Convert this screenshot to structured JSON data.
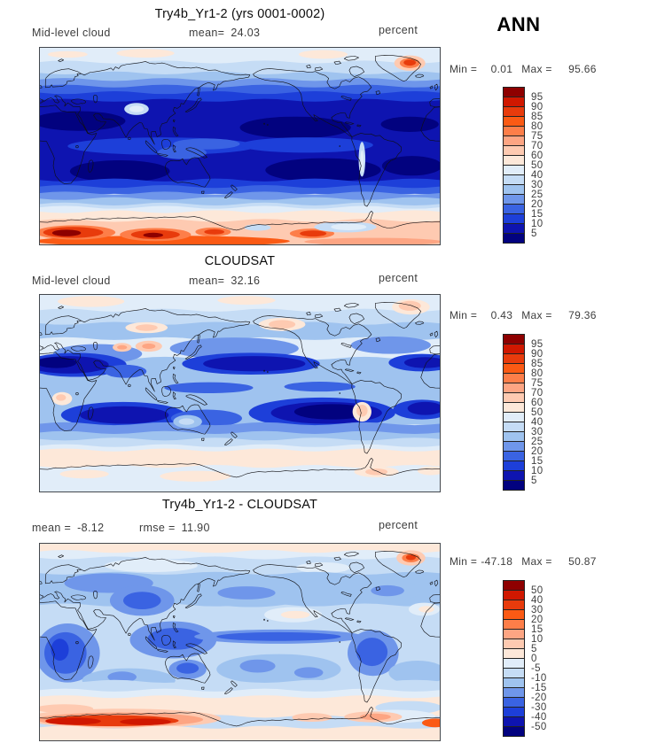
{
  "header": {
    "season": "ANN"
  },
  "palette": [
    "#8e0000",
    "#d01800",
    "#e83b0c",
    "#fb5a14",
    "#fd7e49",
    "#fda583",
    "#fecab1",
    "#fde8d9",
    "#e1edf9",
    "#c5dcf5",
    "#9fc3ef",
    "#6f96ea",
    "#3a63e2",
    "#1d3fd9",
    "#0e14b0",
    "#02027f"
  ],
  "panels": [
    {
      "id": "model",
      "title": "Try4b_Yr1-2 (yrs 0001-0002)",
      "left_label": "Mid-level cloud",
      "left_value": "",
      "mid_label": "mean=",
      "mid_value": "24.03",
      "units": "percent",
      "min_label": "Min =",
      "min_value": "0.01",
      "max_label": "Max =",
      "max_value": "95.66",
      "levels": [
        "95",
        "90",
        "85",
        "80",
        "75",
        "70",
        "60",
        "50",
        "40",
        "30",
        "25",
        "20",
        "15",
        "10",
        "5"
      ]
    },
    {
      "id": "obs",
      "title": "CLOUDSAT",
      "left_label": "Mid-level cloud",
      "left_value": "",
      "mid_label": "mean=",
      "mid_value": "32.16",
      "units": "percent",
      "min_label": "Min =",
      "min_value": "0.43",
      "max_label": "Max =",
      "max_value": "79.36",
      "levels": [
        "95",
        "90",
        "85",
        "80",
        "75",
        "70",
        "60",
        "50",
        "40",
        "30",
        "25",
        "20",
        "15",
        "10",
        "5"
      ]
    },
    {
      "id": "diff",
      "title": "Try4b_Yr1-2 - CLOUDSAT",
      "left_label": "mean =",
      "left_value": "-8.12",
      "mid_label": "rmse =",
      "mid_value": "11.90",
      "units": "percent",
      "min_label": "Min =",
      "min_value": "-47.18",
      "max_label": "Max =",
      "max_value": "50.87",
      "levels": [
        "50",
        "40",
        "30",
        "20",
        "15",
        "10",
        "5",
        "0",
        "-5",
        "-10",
        "-15",
        "-20",
        "-30",
        "-40",
        "-50"
      ]
    }
  ],
  "chart_data": {
    "type": "contour-map",
    "season": "ANN",
    "variable": "Mid-level cloud",
    "units": "percent",
    "projection": "equirectangular, lon 0-360E, lat 90N-90S",
    "maps": [
      {
        "title": "Try4b_Yr1-2 (yrs 0001-0002)",
        "mean": 24.03,
        "min": 0.01,
        "max": 95.66,
        "contour_levels": [
          5,
          10,
          15,
          20,
          25,
          30,
          40,
          50,
          60,
          70,
          75,
          80,
          85,
          90,
          95
        ]
      },
      {
        "title": "CLOUDSAT",
        "mean": 32.16,
        "min": 0.43,
        "max": 79.36,
        "contour_levels": [
          5,
          10,
          15,
          20,
          25,
          30,
          40,
          50,
          60,
          70,
          75,
          80,
          85,
          90,
          95
        ]
      },
      {
        "title": "Try4b_Yr1-2 - CLOUDSAT",
        "mean": -8.12,
        "rmse": 11.9,
        "min": -47.18,
        "max": 50.87,
        "contour_levels": [
          -50,
          -40,
          -30,
          -20,
          -15,
          -10,
          -5,
          0,
          5,
          10,
          15,
          20,
          30,
          40,
          50
        ]
      }
    ],
    "colorbar_colors_top_to_bottom": [
      "#8e0000",
      "#d01800",
      "#e83b0c",
      "#fb5a14",
      "#fd7e49",
      "#fda583",
      "#fecab1",
      "#fde8d9",
      "#e1edf9",
      "#c5dcf5",
      "#9fc3ef",
      "#6f96ea",
      "#3a63e2",
      "#1d3fd9",
      "#0e14b0",
      "#02027f"
    ],
    "legend_position": "right of each map",
    "grid": false
  }
}
